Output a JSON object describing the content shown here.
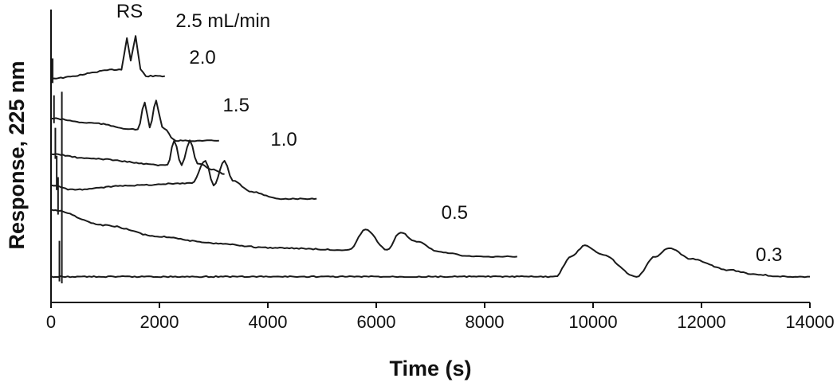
{
  "chart_data": {
    "type": "line",
    "title": "",
    "xlabel": "Time (s)",
    "ylabel": "Response, 225 nm",
    "xlim": [
      0,
      14000
    ],
    "x_ticks": [
      0,
      2000,
      4000,
      6000,
      8000,
      10000,
      12000,
      14000
    ],
    "y_tick_labels": false,
    "grid": false,
    "legend": "none",
    "annotations": [
      {
        "text": "RS",
        "x": 1450,
        "trace": "2.5"
      },
      {
        "text": "2.5 mL/min",
        "x": 2300,
        "trace": "2.5"
      },
      {
        "text": "2.0",
        "x": 2550,
        "trace": "2.0"
      },
      {
        "text": "1.5",
        "x": 3170,
        "trace": "1.5"
      },
      {
        "text": "1.0",
        "x": 4050,
        "trace": "1.0"
      },
      {
        "text": "0.5",
        "x": 7200,
        "trace": "0.5"
      },
      {
        "text": "0.3",
        "x": 13000,
        "trace": "0.3"
      }
    ],
    "series": [
      {
        "name": "2.5",
        "x_end": 2100,
        "segments": [
          [
            0,
            28
          ],
          [
            1300,
            24
          ],
          [
            1400,
            10
          ],
          [
            1470,
            20
          ],
          [
            1560,
            9
          ],
          [
            1650,
            24
          ],
          [
            1750,
            27
          ],
          [
            2100,
            27
          ]
        ]
      },
      {
        "name": "2.0",
        "x_end": 3100,
        "segments": [
          [
            0,
            46
          ],
          [
            700,
            48
          ],
          [
            1600,
            51
          ],
          [
            1730,
            39
          ],
          [
            1820,
            50
          ],
          [
            1940,
            38
          ],
          [
            2050,
            50
          ],
          [
            2300,
            56
          ],
          [
            3100,
            56
          ]
        ]
      },
      {
        "name": "1.5",
        "x_end": 3200,
        "segments": [
          [
            0,
            62
          ],
          [
            700,
            64
          ],
          [
            2150,
            67
          ],
          [
            2270,
            56
          ],
          [
            2410,
            67
          ],
          [
            2560,
            56
          ],
          [
            2700,
            66
          ],
          [
            3000,
            69
          ],
          [
            3200,
            71
          ]
        ]
      },
      {
        "name": "1.0",
        "x_end": 4900,
        "segments": [
          [
            0,
            76
          ],
          [
            400,
            78
          ],
          [
            1500,
            76
          ],
          [
            2600,
            75
          ],
          [
            2850,
            65
          ],
          [
            3000,
            76
          ],
          [
            3200,
            65
          ],
          [
            3350,
            74
          ],
          [
            3700,
            79
          ],
          [
            4200,
            82
          ],
          [
            4900,
            82
          ]
        ]
      },
      {
        "name": "0.5",
        "x_end": 8600,
        "segments": [
          [
            0,
            87
          ],
          [
            1000,
            94
          ],
          [
            2000,
            99
          ],
          [
            3000,
            102
          ],
          [
            4000,
            104
          ],
          [
            5500,
            105
          ],
          [
            5800,
            96
          ],
          [
            6200,
            105
          ],
          [
            6450,
            97
          ],
          [
            6700,
            101
          ],
          [
            7200,
            106
          ],
          [
            7800,
            108
          ],
          [
            8600,
            108
          ]
        ]
      },
      {
        "name": "0.3",
        "x_end": 14000,
        "segments": [
          [
            0,
            117
          ],
          [
            9300,
            117
          ],
          [
            9600,
            108
          ],
          [
            9850,
            103
          ],
          [
            10150,
            107
          ],
          [
            10800,
            117
          ],
          [
            11150,
            108
          ],
          [
            11400,
            104
          ],
          [
            11800,
            109
          ],
          [
            12500,
            114
          ],
          [
            13000,
            116
          ],
          [
            13500,
            117
          ],
          [
            14000,
            117
          ]
        ]
      }
    ]
  }
}
